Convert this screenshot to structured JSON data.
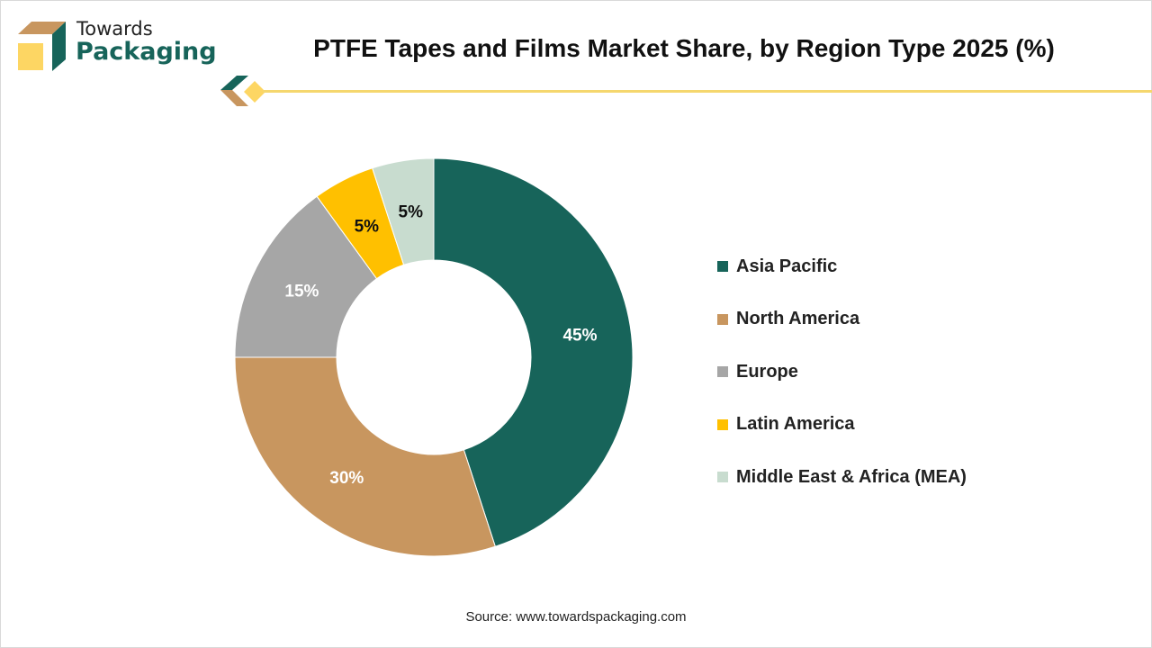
{
  "brand": {
    "line1": "Towards",
    "line2": "Packaging"
  },
  "colors": {
    "brand_green": "#17645a",
    "brand_tan": "#c8965f",
    "brand_yellow": "#fdd663"
  },
  "source": "Source: www.towardspackaging.com",
  "chart_data": {
    "type": "pie",
    "donut": true,
    "title": "PTFE Tapes and Films Market Share, by Region Type 2025 (%)",
    "legend_position": "right",
    "categories": [
      "Asia Pacific",
      "North America",
      "Europe",
      "Latin America",
      "Middle East & Africa (MEA)"
    ],
    "values": [
      45,
      30,
      15,
      5,
      5
    ],
    "labels": [
      "45%",
      "30%",
      "15%",
      "5%",
      "5%"
    ],
    "colors": [
      "#17645a",
      "#c8965f",
      "#a6a6a6",
      "#ffc000",
      "#c8dccf"
    ],
    "label_colors": [
      "#ffffff",
      "#ffffff",
      "#ffffff",
      "#111111",
      "#111111"
    ]
  }
}
